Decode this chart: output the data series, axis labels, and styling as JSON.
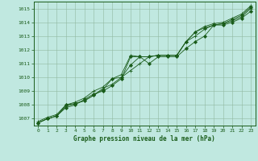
{
  "title": "Graphe pression niveau de la mer (hPa)",
  "background_color": "#c0e8e0",
  "plot_bg_color": "#c0e8e0",
  "grid_color": "#90b8a0",
  "line_color": "#1a5c1a",
  "spine_color": "#1a5c1a",
  "xlim": [
    -0.5,
    23.5
  ],
  "ylim": [
    1006.5,
    1015.5
  ],
  "yticks": [
    1007,
    1008,
    1009,
    1010,
    1011,
    1012,
    1013,
    1014,
    1015
  ],
  "xticks": [
    0,
    1,
    2,
    3,
    4,
    5,
    6,
    7,
    8,
    9,
    10,
    11,
    12,
    13,
    14,
    15,
    16,
    17,
    18,
    19,
    20,
    21,
    22,
    23
  ],
  "series": [
    [
      1006.7,
      1007.0,
      1007.2,
      1007.8,
      1008.0,
      1008.4,
      1008.8,
      1009.0,
      1009.4,
      1009.9,
      1011.5,
      1011.5,
      1011.0,
      1011.5,
      1011.5,
      1011.5,
      1012.1,
      1012.6,
      1013.0,
      1013.8,
      1013.8,
      1014.0,
      1014.3,
      1014.8
    ],
    [
      1006.7,
      1007.0,
      1007.2,
      1007.9,
      1008.1,
      1008.3,
      1008.7,
      1009.2,
      1009.5,
      1010.0,
      1010.5,
      1011.0,
      1011.5,
      1011.6,
      1011.6,
      1011.6,
      1012.6,
      1013.0,
      1013.5,
      1013.8,
      1013.9,
      1014.1,
      1014.4,
      1015.0
    ],
    [
      1006.7,
      1007.0,
      1007.2,
      1008.0,
      1008.1,
      1008.3,
      1008.7,
      1009.1,
      1009.9,
      1010.0,
      1010.9,
      1011.5,
      1011.5,
      1011.6,
      1011.6,
      1011.6,
      1012.6,
      1013.3,
      1013.6,
      1013.8,
      1013.9,
      1014.2,
      1014.5,
      1015.1
    ],
    [
      1006.8,
      1007.1,
      1007.3,
      1008.0,
      1008.2,
      1008.5,
      1009.0,
      1009.3,
      1009.9,
      1010.2,
      1011.6,
      1011.5,
      1011.5,
      1011.6,
      1011.6,
      1011.6,
      1012.6,
      1013.3,
      1013.7,
      1013.9,
      1014.0,
      1014.3,
      1014.6,
      1015.2
    ]
  ],
  "markers": [
    "D",
    "+",
    "D",
    "+"
  ],
  "markersizes": [
    2.0,
    3.5,
    2.0,
    3.5
  ],
  "linewidth": 0.6
}
